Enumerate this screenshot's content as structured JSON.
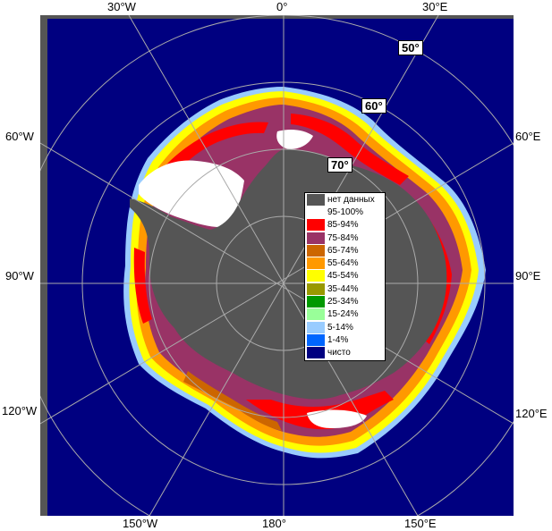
{
  "longitude_labels": {
    "top": [
      "30°W",
      "0°",
      "30°E"
    ],
    "left": [
      "60°W",
      "90°W",
      "120°W"
    ],
    "right": [
      "60°E",
      "90°E",
      "120°E"
    ],
    "bottom": [
      "150°W",
      "180°",
      "150°E"
    ]
  },
  "latitude_labels": [
    "50°",
    "60°",
    "70°"
  ],
  "legend": [
    {
      "label": "нет данных",
      "color": "#555555"
    },
    {
      "label": "95-100%",
      "color": "#ffffff"
    },
    {
      "label": "85-94%",
      "color": "#ff0000"
    },
    {
      "label": "75-84%",
      "color": "#993366"
    },
    {
      "label": "65-74%",
      "color": "#cc6600"
    },
    {
      "label": "55-64%",
      "color": "#ff9900"
    },
    {
      "label": "45-54%",
      "color": "#ffff00"
    },
    {
      "label": "35-44%",
      "color": "#999900"
    },
    {
      "label": "25-34%",
      "color": "#009900"
    },
    {
      "label": "15-24%",
      "color": "#99ff99"
    },
    {
      "label": "5-14%",
      "color": "#99ccff"
    },
    {
      "label": "1-4%",
      "color": "#0066ff"
    },
    {
      "label": "чисто",
      "color": "#000080"
    }
  ],
  "colors": {
    "ocean": "#000080",
    "frame": "#555555",
    "grid": "#aaaaaa"
  }
}
